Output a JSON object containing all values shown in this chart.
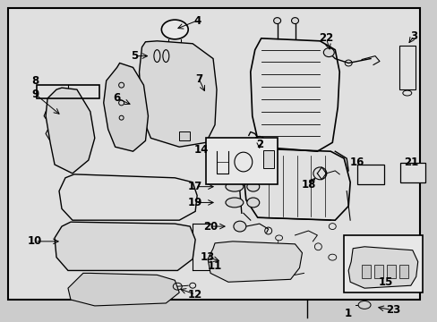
{
  "bg_color": "#cccccc",
  "diagram_bg": "#e0e0e0",
  "border_color": "#000000",
  "figsize": [
    4.89,
    3.6
  ],
  "dpi": 100
}
